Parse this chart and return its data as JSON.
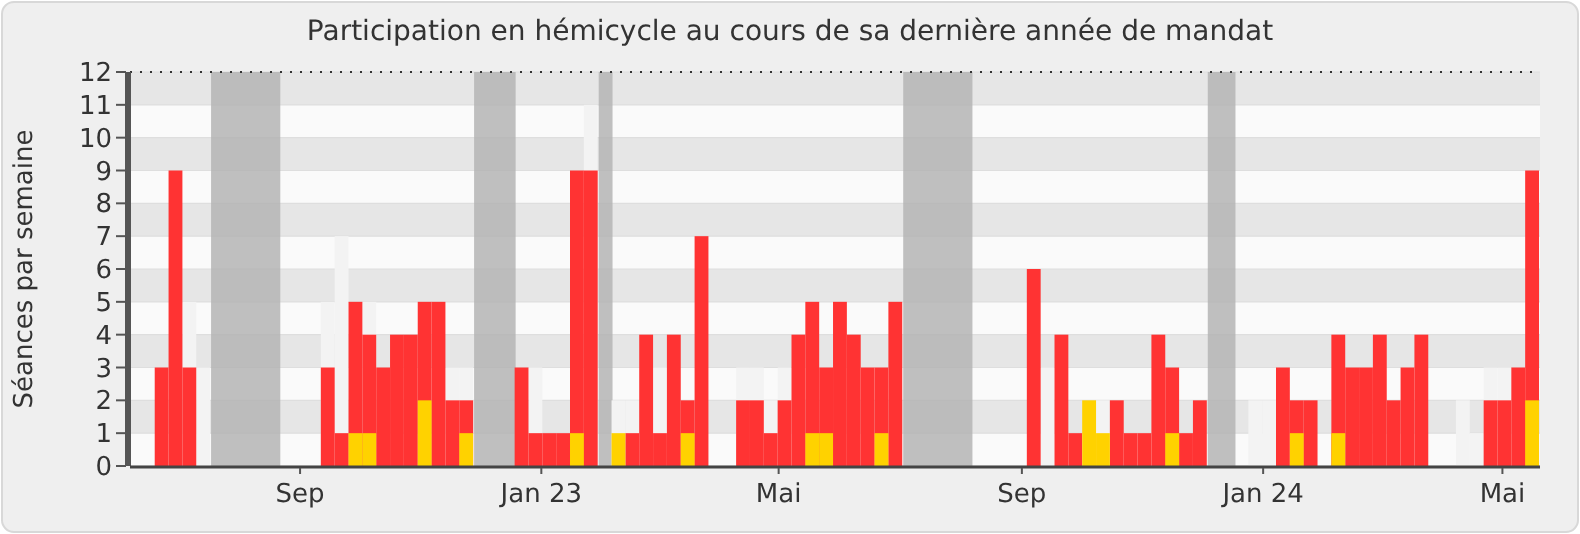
{
  "chart_data": {
    "type": "bar",
    "title": "Participation en hémicycle au cours de sa dernière année de mandat",
    "ylabel": "Séances par semaine",
    "x": [
      "2022-06-23",
      "2022-06-30",
      "2022-07-07",
      "2022-07-14",
      "2022-07-21",
      "2022-07-28",
      "2022-08-04",
      "2022-08-11",
      "2022-08-18",
      "2022-08-25",
      "2022-09-01",
      "2022-09-08",
      "2022-09-15",
      "2022-09-22",
      "2022-09-29",
      "2022-10-06",
      "2022-10-13",
      "2022-10-20",
      "2022-10-27",
      "2022-11-03",
      "2022-11-10",
      "2022-11-17",
      "2022-11-24",
      "2022-12-01",
      "2022-12-08",
      "2022-12-15",
      "2022-12-22",
      "2022-12-29",
      "2023-01-05",
      "2023-01-12",
      "2023-01-19",
      "2023-01-26",
      "2023-02-02",
      "2023-02-09",
      "2023-02-16",
      "2023-02-23",
      "2023-03-02",
      "2023-03-09",
      "2023-03-16",
      "2023-03-23",
      "2023-03-30",
      "2023-04-06",
      "2023-04-13",
      "2023-04-20",
      "2023-04-27",
      "2023-05-04",
      "2023-05-11",
      "2023-05-18",
      "2023-05-25",
      "2023-06-01",
      "2023-06-08",
      "2023-06-15",
      "2023-06-22",
      "2023-06-29",
      "2023-07-06",
      "2023-07-13",
      "2023-07-20",
      "2023-07-27",
      "2023-08-03",
      "2023-08-10",
      "2023-08-17",
      "2023-08-24",
      "2023-08-31",
      "2023-09-07",
      "2023-09-14",
      "2023-09-21",
      "2023-09-28",
      "2023-10-05",
      "2023-10-12",
      "2023-10-19",
      "2023-10-26",
      "2023-11-02",
      "2023-11-09",
      "2023-11-16",
      "2023-11-23",
      "2023-11-30",
      "2023-12-07",
      "2023-12-14",
      "2023-12-21",
      "2023-12-28",
      "2024-01-04",
      "2024-01-11",
      "2024-01-18",
      "2024-01-25",
      "2024-02-01",
      "2024-02-08",
      "2024-02-15",
      "2024-02-22",
      "2024-02-29",
      "2024-03-07",
      "2024-03-14",
      "2024-03-21",
      "2024-03-28",
      "2024-04-04",
      "2024-04-11",
      "2024-04-18",
      "2024-04-25",
      "2024-05-02",
      "2024-05-09",
      "2024-05-16"
    ],
    "xlim": [
      "2022-06-07",
      "2024-05-20"
    ],
    "xticks": [
      {
        "value": "2022-09-01",
        "label": "Sep"
      },
      {
        "value": "2023-01-01",
        "label": "Jan 23"
      },
      {
        "value": "2023-05-01",
        "label": "Mai"
      },
      {
        "value": "2023-09-01",
        "label": "Sep"
      },
      {
        "value": "2024-01-01",
        "label": "Jan 24"
      },
      {
        "value": "2024-05-01",
        "label": "Mai"
      }
    ],
    "ylim": [
      0,
      12
    ],
    "yticks": [
      0,
      1,
      2,
      3,
      4,
      5,
      6,
      7,
      8,
      9,
      10,
      11,
      12
    ],
    "grid": true,
    "bands": [
      {
        "axis": "x",
        "from": "2022-07-18",
        "to": "2022-08-22",
        "color": "#b4b4b4"
      },
      {
        "axis": "x",
        "from": "2022-11-28",
        "to": "2022-12-19",
        "color": "#b4b4b4"
      },
      {
        "axis": "x",
        "from": "2023-01-30",
        "to": "2023-02-06",
        "color": "#b4b4b4"
      },
      {
        "axis": "x",
        "from": "2023-07-03",
        "to": "2023-08-07",
        "color": "#b4b4b4"
      },
      {
        "axis": "x",
        "from": "2023-12-04",
        "to": "2023-12-18",
        "color": "#b4b4b4"
      }
    ],
    "series": [
      {
        "color": "#f3f3f3",
        "values": [
          null,
          null,
          5,
          3,
          null,
          null,
          null,
          null,
          null,
          null,
          null,
          null,
          5,
          7,
          null,
          5,
          null,
          null,
          null,
          null,
          null,
          3,
          3,
          null,
          null,
          null,
          null,
          3,
          null,
          null,
          null,
          11,
          null,
          2,
          2,
          null,
          3,
          null,
          null,
          null,
          null,
          null,
          3,
          3,
          2,
          3,
          null,
          null,
          null,
          null,
          null,
          null,
          null,
          null,
          null,
          null,
          null,
          null,
          null,
          null,
          null,
          null,
          null,
          null,
          3,
          null,
          null,
          null,
          2,
          null,
          null,
          null,
          null,
          null,
          null,
          null,
          null,
          null,
          null,
          2,
          2,
          null,
          null,
          null,
          null,
          null,
          null,
          null,
          null,
          null,
          null,
          null,
          null,
          null,
          2,
          1,
          3,
          3,
          null,
          null
        ]
      },
      {
        "color": "#ff3333",
        "values": [
          3,
          9,
          3,
          0,
          0,
          0,
          0,
          0,
          0,
          0,
          0,
          0,
          3,
          1,
          5,
          4,
          3,
          4,
          4,
          5,
          5,
          2,
          2,
          0,
          0,
          0,
          3,
          1,
          1,
          1,
          9,
          9,
          0,
          null,
          1,
          4,
          1,
          4,
          2,
          7,
          0,
          0,
          2,
          2,
          1,
          2,
          4,
          5,
          3,
          5,
          4,
          3,
          3,
          5,
          0,
          0,
          0,
          0,
          0,
          0,
          0,
          0,
          0,
          6,
          0,
          4,
          1,
          null,
          null,
          2,
          1,
          1,
          4,
          3,
          1,
          2,
          0,
          0,
          0,
          0,
          0,
          3,
          2,
          2,
          0,
          4,
          3,
          3,
          4,
          2,
          3,
          4,
          0,
          0,
          0,
          0,
          2,
          2,
          3,
          9
        ]
      },
      {
        "color": "#ffd200",
        "values": [
          0,
          0,
          0,
          0,
          0,
          0,
          0,
          0,
          0,
          0,
          0,
          0,
          0,
          0,
          1,
          1,
          0,
          0,
          0,
          2,
          0,
          0,
          1,
          0,
          0,
          0,
          0,
          0,
          0,
          0,
          1,
          0,
          0,
          1,
          0,
          0,
          0,
          0,
          1,
          0,
          0,
          0,
          0,
          0,
          0,
          0,
          0,
          1,
          1,
          0,
          0,
          0,
          1,
          0,
          0,
          0,
          0,
          0,
          0,
          0,
          0,
          0,
          0,
          0,
          0,
          0,
          0,
          2,
          1,
          0,
          0,
          0,
          0,
          1,
          0,
          0,
          0,
          0,
          0,
          0,
          0,
          0,
          1,
          0,
          0,
          1,
          0,
          0,
          0,
          0,
          0,
          0,
          0,
          0,
          0,
          0,
          0,
          0,
          0,
          2
        ]
      }
    ]
  }
}
